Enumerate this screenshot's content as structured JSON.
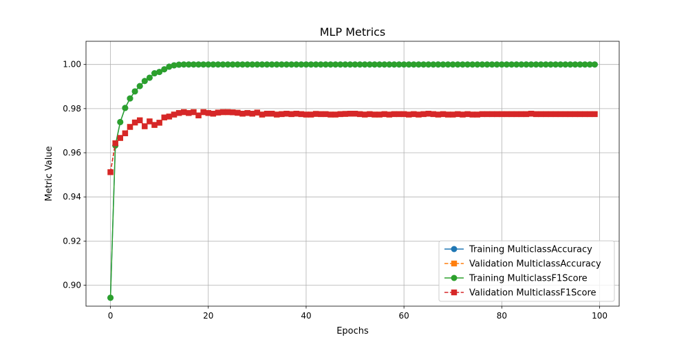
{
  "chart_data": {
    "type": "line",
    "title": "MLP Metrics",
    "xlabel": "Epochs",
    "ylabel": "Metric Value",
    "xlim": [
      -5,
      104
    ],
    "ylim": [
      0.8905,
      1.0105
    ],
    "xticks": [
      0,
      20,
      40,
      60,
      80,
      100
    ],
    "xtick_labels": [
      "0",
      "20",
      "40",
      "60",
      "80",
      "100"
    ],
    "yticks": [
      0.9,
      0.92,
      0.94,
      0.96,
      0.98,
      1.0
    ],
    "ytick_labels": [
      "0.90",
      "0.92",
      "0.94",
      "0.96",
      "0.98",
      "1.00"
    ],
    "grid": true,
    "legend_position": "bottom-right",
    "x": [
      0,
      1,
      2,
      3,
      4,
      5,
      6,
      7,
      8,
      9,
      10,
      11,
      12,
      13,
      14,
      15,
      16,
      17,
      18,
      19,
      20,
      21,
      22,
      23,
      24,
      25,
      26,
      27,
      28,
      29,
      30,
      31,
      32,
      33,
      34,
      35,
      36,
      37,
      38,
      39,
      40,
      41,
      42,
      43,
      44,
      45,
      46,
      47,
      48,
      49,
      50,
      51,
      52,
      53,
      54,
      55,
      56,
      57,
      58,
      59,
      60,
      61,
      62,
      63,
      64,
      65,
      66,
      67,
      68,
      69,
      70,
      71,
      72,
      73,
      74,
      75,
      76,
      77,
      78,
      79,
      80,
      81,
      82,
      83,
      84,
      85,
      86,
      87,
      88,
      89,
      90,
      91,
      92,
      93,
      94,
      95,
      96,
      97,
      98,
      99
    ],
    "series": [
      {
        "name": "Training MulticlassAccuracy",
        "color": "#1f77b4",
        "linestyle": "solid",
        "marker": "circle",
        "values": [
          0.8943,
          0.9633,
          0.9739,
          0.9803,
          0.9846,
          0.9878,
          0.9902,
          0.9925,
          0.994,
          0.996,
          0.9966,
          0.9978,
          0.999,
          0.9996,
          0.9999,
          1.0,
          1.0,
          1.0,
          1.0,
          1.0,
          1.0,
          1.0,
          1.0,
          1.0,
          1.0,
          1.0,
          1.0,
          1.0,
          1.0,
          1.0,
          1.0,
          1.0,
          1.0,
          1.0,
          1.0,
          1.0,
          1.0,
          1.0,
          1.0,
          1.0,
          1.0,
          1.0,
          1.0,
          1.0,
          1.0,
          1.0,
          1.0,
          1.0,
          1.0,
          1.0,
          1.0,
          1.0,
          1.0,
          1.0,
          1.0,
          1.0,
          1.0,
          1.0,
          1.0,
          1.0,
          1.0,
          1.0,
          1.0,
          1.0,
          1.0,
          1.0,
          1.0,
          1.0,
          1.0,
          1.0,
          1.0,
          1.0,
          1.0,
          1.0,
          1.0,
          1.0,
          1.0,
          1.0,
          1.0,
          1.0,
          1.0,
          1.0,
          1.0,
          1.0,
          1.0,
          1.0,
          1.0,
          1.0,
          1.0,
          1.0,
          1.0,
          1.0,
          1.0,
          1.0,
          1.0,
          1.0,
          1.0,
          1.0,
          1.0,
          1.0
        ]
      },
      {
        "name": "Validation MulticlassAccuracy",
        "color": "#ff7f0e",
        "linestyle": "dashed",
        "marker": "square",
        "values": [
          0.9512,
          0.9643,
          0.9667,
          0.9688,
          0.9717,
          0.9737,
          0.9747,
          0.972,
          0.9742,
          0.9726,
          0.9736,
          0.976,
          0.9764,
          0.9773,
          0.978,
          0.9784,
          0.978,
          0.9784,
          0.9769,
          0.9784,
          0.978,
          0.9777,
          0.9782,
          0.9784,
          0.9784,
          0.9783,
          0.9781,
          0.9777,
          0.978,
          0.9777,
          0.9782,
          0.9773,
          0.9777,
          0.9777,
          0.9773,
          0.9775,
          0.9777,
          0.9775,
          0.9777,
          0.9775,
          0.9773,
          0.9773,
          0.9776,
          0.9775,
          0.9775,
          0.9773,
          0.9773,
          0.9775,
          0.9776,
          0.9777,
          0.9777,
          0.9775,
          0.9773,
          0.9775,
          0.9773,
          0.9773,
          0.9775,
          0.9773,
          0.9775,
          0.9775,
          0.9775,
          0.9773,
          0.9775,
          0.9773,
          0.9775,
          0.9777,
          0.9775,
          0.9773,
          0.9775,
          0.9773,
          0.9773,
          0.9775,
          0.9773,
          0.9775,
          0.9773,
          0.9773,
          0.9775,
          0.9775,
          0.9775,
          0.9775,
          0.9775,
          0.9775,
          0.9775,
          0.9775,
          0.9775,
          0.9775,
          0.9777,
          0.9775,
          0.9775,
          0.9775,
          0.9775,
          0.9775,
          0.9775,
          0.9775,
          0.9775,
          0.9775,
          0.9775,
          0.9775,
          0.9775,
          0.9775
        ]
      },
      {
        "name": "Training MulticlassF1Score",
        "color": "#2ca02c",
        "linestyle": "solid",
        "marker": "circle",
        "values": [
          0.8943,
          0.9633,
          0.9739,
          0.9803,
          0.9846,
          0.9878,
          0.9902,
          0.9925,
          0.994,
          0.996,
          0.9966,
          0.9978,
          0.999,
          0.9996,
          0.9999,
          1.0,
          1.0,
          1.0,
          1.0,
          1.0,
          1.0,
          1.0,
          1.0,
          1.0,
          1.0,
          1.0,
          1.0,
          1.0,
          1.0,
          1.0,
          1.0,
          1.0,
          1.0,
          1.0,
          1.0,
          1.0,
          1.0,
          1.0,
          1.0,
          1.0,
          1.0,
          1.0,
          1.0,
          1.0,
          1.0,
          1.0,
          1.0,
          1.0,
          1.0,
          1.0,
          1.0,
          1.0,
          1.0,
          1.0,
          1.0,
          1.0,
          1.0,
          1.0,
          1.0,
          1.0,
          1.0,
          1.0,
          1.0,
          1.0,
          1.0,
          1.0,
          1.0,
          1.0,
          1.0,
          1.0,
          1.0,
          1.0,
          1.0,
          1.0,
          1.0,
          1.0,
          1.0,
          1.0,
          1.0,
          1.0,
          1.0,
          1.0,
          1.0,
          1.0,
          1.0,
          1.0,
          1.0,
          1.0,
          1.0,
          1.0,
          1.0,
          1.0,
          1.0,
          1.0,
          1.0,
          1.0,
          1.0,
          1.0,
          1.0,
          1.0
        ]
      },
      {
        "name": "Validation MulticlassF1Score",
        "color": "#d62728",
        "linestyle": "dashed",
        "marker": "square",
        "values": [
          0.9512,
          0.9643,
          0.9667,
          0.9688,
          0.9717,
          0.9737,
          0.9747,
          0.972,
          0.9742,
          0.9726,
          0.9736,
          0.976,
          0.9764,
          0.9773,
          0.978,
          0.9784,
          0.978,
          0.9784,
          0.9769,
          0.9784,
          0.978,
          0.9777,
          0.9782,
          0.9784,
          0.9784,
          0.9783,
          0.9781,
          0.9777,
          0.978,
          0.9777,
          0.9782,
          0.9773,
          0.9777,
          0.9777,
          0.9773,
          0.9775,
          0.9777,
          0.9775,
          0.9777,
          0.9775,
          0.9773,
          0.9773,
          0.9776,
          0.9775,
          0.9775,
          0.9773,
          0.9773,
          0.9775,
          0.9776,
          0.9777,
          0.9777,
          0.9775,
          0.9773,
          0.9775,
          0.9773,
          0.9773,
          0.9775,
          0.9773,
          0.9775,
          0.9775,
          0.9775,
          0.9773,
          0.9775,
          0.9773,
          0.9775,
          0.9777,
          0.9775,
          0.9773,
          0.9775,
          0.9773,
          0.9773,
          0.9775,
          0.9773,
          0.9775,
          0.9773,
          0.9773,
          0.9775,
          0.9775,
          0.9775,
          0.9775,
          0.9775,
          0.9775,
          0.9775,
          0.9775,
          0.9775,
          0.9775,
          0.9777,
          0.9775,
          0.9775,
          0.9775,
          0.9775,
          0.9775,
          0.9775,
          0.9775,
          0.9775,
          0.9775,
          0.9775,
          0.9775,
          0.9775,
          0.9775
        ]
      }
    ]
  }
}
